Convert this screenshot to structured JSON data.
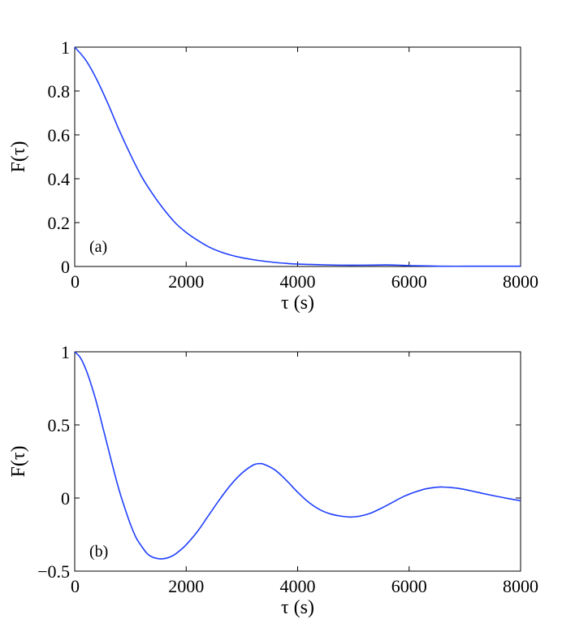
{
  "chart_data": [
    {
      "type": "line",
      "panel_label": "(a)",
      "xlabel": "τ (s)",
      "ylabel": "F(τ)",
      "xlim": [
        0,
        8000
      ],
      "ylim": [
        0,
        1
      ],
      "xticks": [
        0,
        2000,
        4000,
        6000,
        8000
      ],
      "xtick_labels": [
        "0",
        "2000",
        "4000",
        "6000",
        "8000"
      ],
      "yticks": [
        0,
        0.2,
        0.4,
        0.6,
        0.8,
        1
      ],
      "ytick_labels": [
        "0",
        "0.2",
        "0.4",
        "0.6",
        "0.8",
        "1"
      ],
      "grid": false,
      "line_color": "#1f3fff",
      "series": [
        {
          "x": [
            0,
            200,
            400,
            600,
            800,
            1000,
            1200,
            1400,
            1600,
            1800,
            2000,
            2200,
            2400,
            2600,
            2800,
            3000,
            3200,
            3400,
            3600,
            3800,
            4000,
            4400,
            4800,
            5200,
            5600,
            5800,
            6000,
            6400,
            6600,
            7000,
            7400,
            7800,
            8000
          ],
          "y": [
            1.0,
            0.94,
            0.85,
            0.74,
            0.62,
            0.51,
            0.41,
            0.33,
            0.26,
            0.2,
            0.155,
            0.12,
            0.09,
            0.068,
            0.052,
            0.04,
            0.031,
            0.024,
            0.018,
            0.014,
            0.011,
            0.008,
            0.006,
            0.006,
            0.007,
            0.006,
            0.004,
            0.002,
            0.001,
            0.001,
            0.001,
            0.001,
            0.001
          ]
        }
      ]
    },
    {
      "type": "line",
      "panel_label": "(b)",
      "xlabel": "τ (s)",
      "ylabel": "F(τ)",
      "xlim": [
        0,
        8000
      ],
      "ylim": [
        -0.5,
        1
      ],
      "xticks": [
        0,
        2000,
        4000,
        6000,
        8000
      ],
      "xtick_labels": [
        "0",
        "2000",
        "4000",
        "6000",
        "8000"
      ],
      "yticks": [
        -0.5,
        0,
        0.5,
        1
      ],
      "ytick_labels": [
        "−0.5",
        "0",
        "0.5",
        "1"
      ],
      "grid": false,
      "line_color": "#1f3fff",
      "series": [
        {
          "x": [
            0,
            100,
            200,
            300,
            400,
            500,
            600,
            700,
            800,
            900,
            1000,
            1100,
            1200,
            1300,
            1400,
            1500,
            1600,
            1700,
            1800,
            1900,
            2000,
            2200,
            2400,
            2600,
            2800,
            3000,
            3200,
            3300,
            3400,
            3600,
            3800,
            4000,
            4200,
            4400,
            4600,
            4800,
            4950,
            5100,
            5300,
            5500,
            5700,
            5900,
            6100,
            6300,
            6500,
            6600,
            6700,
            6900,
            7100,
            7300,
            7500,
            7700,
            7900,
            8000
          ],
          "y": [
            1.0,
            0.96,
            0.88,
            0.77,
            0.64,
            0.49,
            0.34,
            0.19,
            0.05,
            -0.07,
            -0.18,
            -0.27,
            -0.33,
            -0.38,
            -0.405,
            -0.415,
            -0.415,
            -0.405,
            -0.385,
            -0.355,
            -0.32,
            -0.23,
            -0.12,
            -0.01,
            0.09,
            0.17,
            0.225,
            0.235,
            0.23,
            0.19,
            0.12,
            0.04,
            -0.03,
            -0.08,
            -0.11,
            -0.125,
            -0.13,
            -0.125,
            -0.105,
            -0.07,
            -0.03,
            0.01,
            0.04,
            0.063,
            0.074,
            0.075,
            0.073,
            0.065,
            0.05,
            0.033,
            0.017,
            0.002,
            -0.012,
            -0.018
          ]
        }
      ]
    }
  ]
}
